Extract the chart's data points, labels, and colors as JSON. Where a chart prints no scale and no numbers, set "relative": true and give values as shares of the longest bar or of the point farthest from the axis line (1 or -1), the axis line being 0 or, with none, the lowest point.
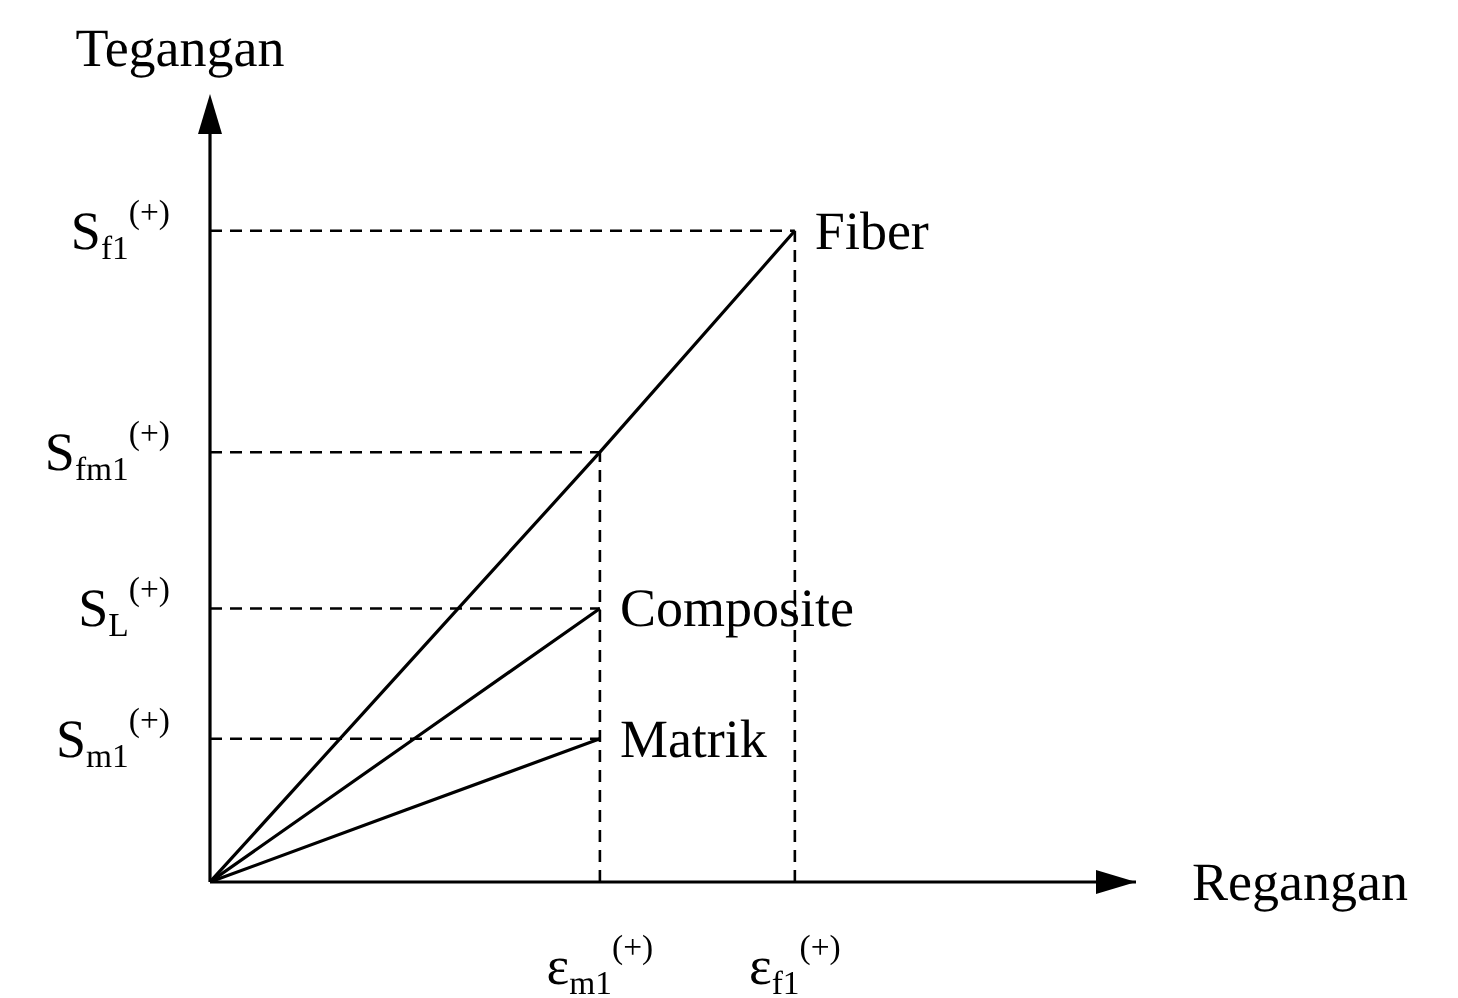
{
  "chart_data": {
    "type": "line",
    "relative": true,
    "ylabel": "Tegangan",
    "annotations": [
      "Regangan"
    ],
    "marker": "none",
    "line_style": "solid",
    "categories": [
      null,
      null,
      "ε$_{m1}$$^{(+)}$",
      "ε$_{f1}$$^{(+)}$"
    ],
    "series": [
      {
        "name": "Fiber",
        "color": "#000000",
        "values": [
          0,
          0.33,
          0.66,
          1
        ]
      },
      {
        "name": "Composite",
        "color": "#000000",
        "values": [
          0,
          0.21,
          0.42,
          null
        ]
      },
      {
        "name": "Matrik",
        "color": "#000000",
        "values": [
          0,
          0.11,
          0.22,
          null
        ]
      }
    ],
    "ref_lines": [
      {
        "axis": "y",
        "value": 1,
        "label": "S$_{f1}$$^{(+)}$",
        "line_style": "dashed",
        "color": "#000000"
      },
      {
        "axis": "y",
        "value": 0.66,
        "label": "S$_{fm1}$$^{(+)}$",
        "line_style": "dashed",
        "color": "#000000"
      },
      {
        "axis": "y",
        "value": 0.42,
        "label": "S$_{L}$$^{(+)}$",
        "line_style": "dashed",
        "color": "#000000"
      },
      {
        "axis": "y",
        "value": 0.22,
        "label": "S$_{m1}$$^{(+)}$",
        "line_style": "dashed",
        "color": "#000000"
      },
      {
        "axis": "x",
        "value": "ε$_{m1}$$^{(+)}$",
        "line_style": "dashed",
        "color": "#000000"
      },
      {
        "axis": "x",
        "value": "ε$_{f1}$$^{(+)}$",
        "line_style": "dashed",
        "color": "#000000"
      }
    ]
  }
}
